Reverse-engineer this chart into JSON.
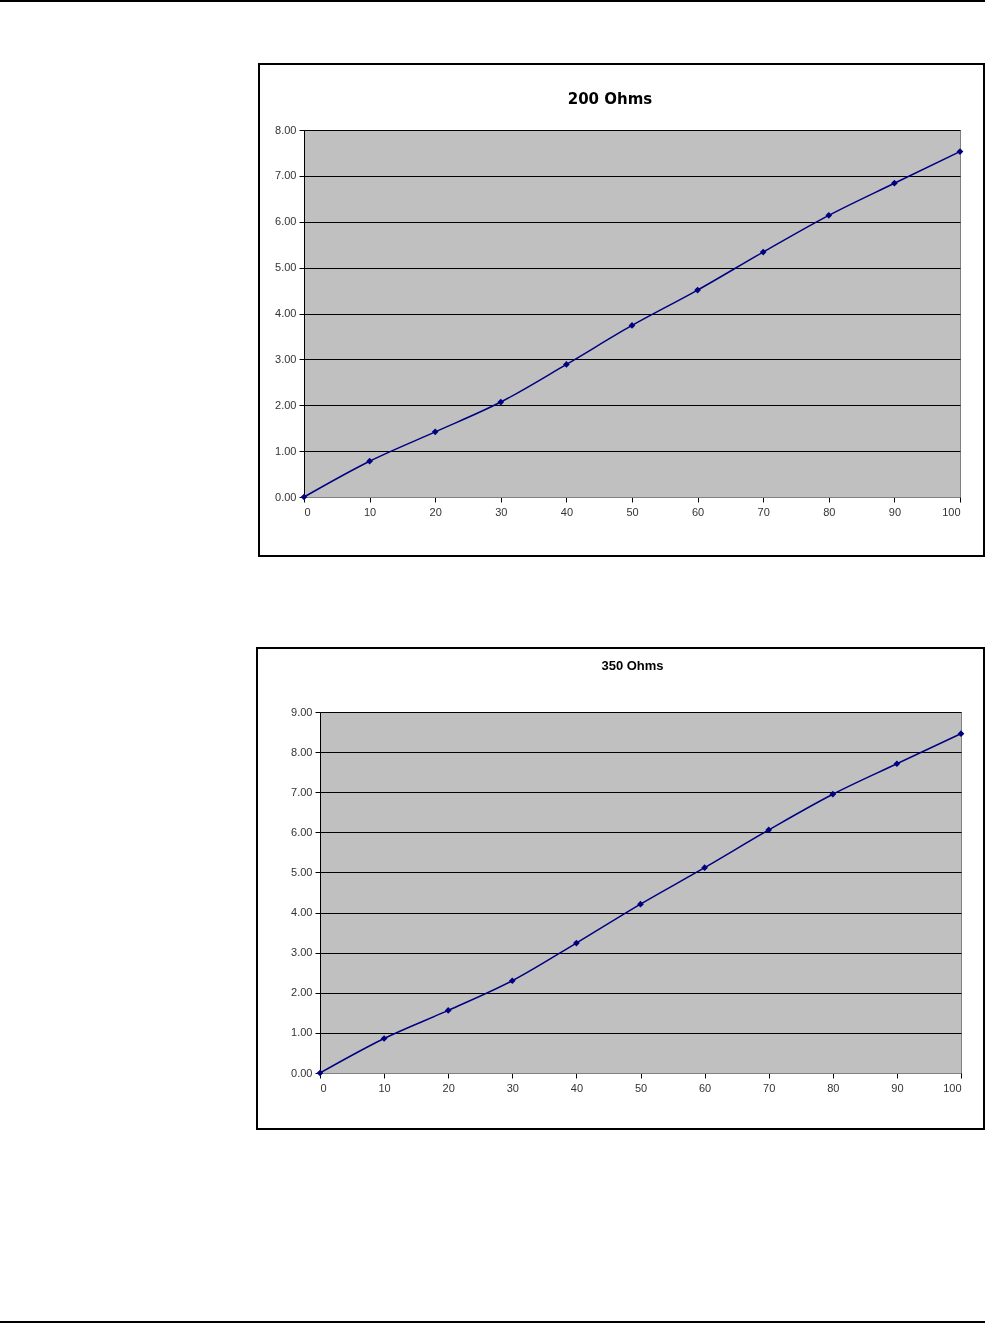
{
  "chart_data": [
    {
      "type": "line",
      "title": "200 Ohms",
      "x": [
        0,
        10,
        20,
        30,
        40,
        50,
        60,
        70,
        80,
        90,
        100
      ],
      "series": [
        {
          "color": "#000080",
          "values": [
            0,
            0.78,
            1.42,
            2.07,
            2.89,
            3.74,
            4.51,
            5.34,
            6.14,
            6.84,
            7.53
          ]
        }
      ],
      "xlim": [
        0,
        100
      ],
      "xticks": [
        0,
        10,
        20,
        30,
        40,
        50,
        60,
        70,
        80,
        90,
        100
      ],
      "ylim": [
        0,
        8
      ],
      "yticks": [
        {
          "value": 0,
          "label": "0.00"
        },
        {
          "value": 1,
          "label": "1.00"
        },
        {
          "value": 2,
          "label": "2.00"
        },
        {
          "value": 3,
          "label": "3.00"
        },
        {
          "value": 4,
          "label": "4.00"
        },
        {
          "value": 5,
          "label": "5.00"
        },
        {
          "value": 6,
          "label": "6.00"
        },
        {
          "value": 7,
          "label": "7.00"
        },
        {
          "value": 8,
          "label": "8.00"
        }
      ],
      "grid": "y",
      "marker": "diamond",
      "line_style": "solid"
    },
    {
      "type": "line",
      "title": "350 Ohms",
      "x": [
        0,
        10,
        20,
        30,
        40,
        50,
        60,
        70,
        80,
        90,
        100
      ],
      "series": [
        {
          "color": "#000080",
          "values": [
            0,
            0.86,
            1.56,
            2.3,
            3.24,
            4.21,
            5.12,
            6.06,
            6.95,
            7.71,
            8.46
          ]
        }
      ],
      "xlim": [
        0,
        100
      ],
      "xticks": [
        0,
        10,
        20,
        30,
        40,
        50,
        60,
        70,
        80,
        90,
        100
      ],
      "ylim": [
        0,
        9
      ],
      "yticks": [
        {
          "value": 0,
          "label": "0.00"
        },
        {
          "value": 1,
          "label": "1.00"
        },
        {
          "value": 2,
          "label": "2.00"
        },
        {
          "value": 3,
          "label": "3.00"
        },
        {
          "value": 4,
          "label": "4.00"
        },
        {
          "value": 5,
          "label": "5.00"
        },
        {
          "value": 6,
          "label": "6.00"
        },
        {
          "value": 7,
          "label": "7.00"
        },
        {
          "value": 8,
          "label": "8.00"
        },
        {
          "value": 9,
          "label": "9.00"
        }
      ],
      "grid": "y",
      "marker": "diamond",
      "line_style": "solid"
    }
  ]
}
